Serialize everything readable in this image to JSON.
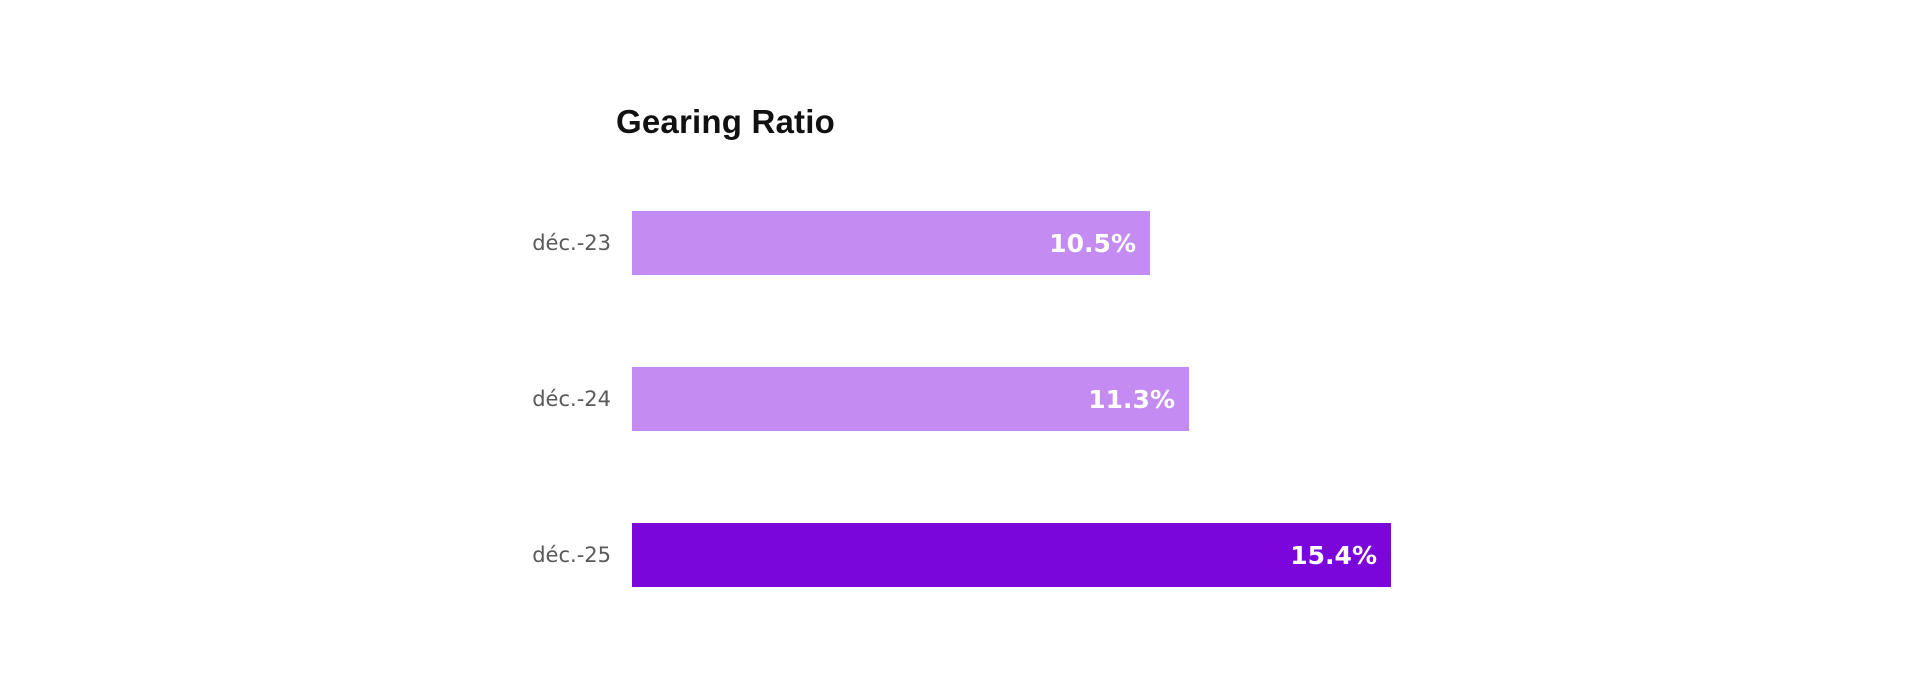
{
  "chart_data": {
    "type": "bar",
    "orientation": "horizontal",
    "title": "Gearing Ratio",
    "categories": [
      "déc.-23",
      "déc.-24",
      "déc.-25"
    ],
    "values": [
      10.5,
      11.3,
      15.4
    ],
    "value_labels": [
      "10.5%",
      "11.3%",
      "15.4%"
    ],
    "unit": "%",
    "xlim": [
      0,
      15.65
    ],
    "grid": false,
    "legend": "none",
    "axes_visible": false,
    "bar_colors": [
      "#C48CF2",
      "#C48CF2",
      "#7A06DB"
    ],
    "title_color": "#111111",
    "category_label_color": "#595959",
    "value_label_color": "#FFFFFF",
    "background_color": "#FFFFFF"
  }
}
